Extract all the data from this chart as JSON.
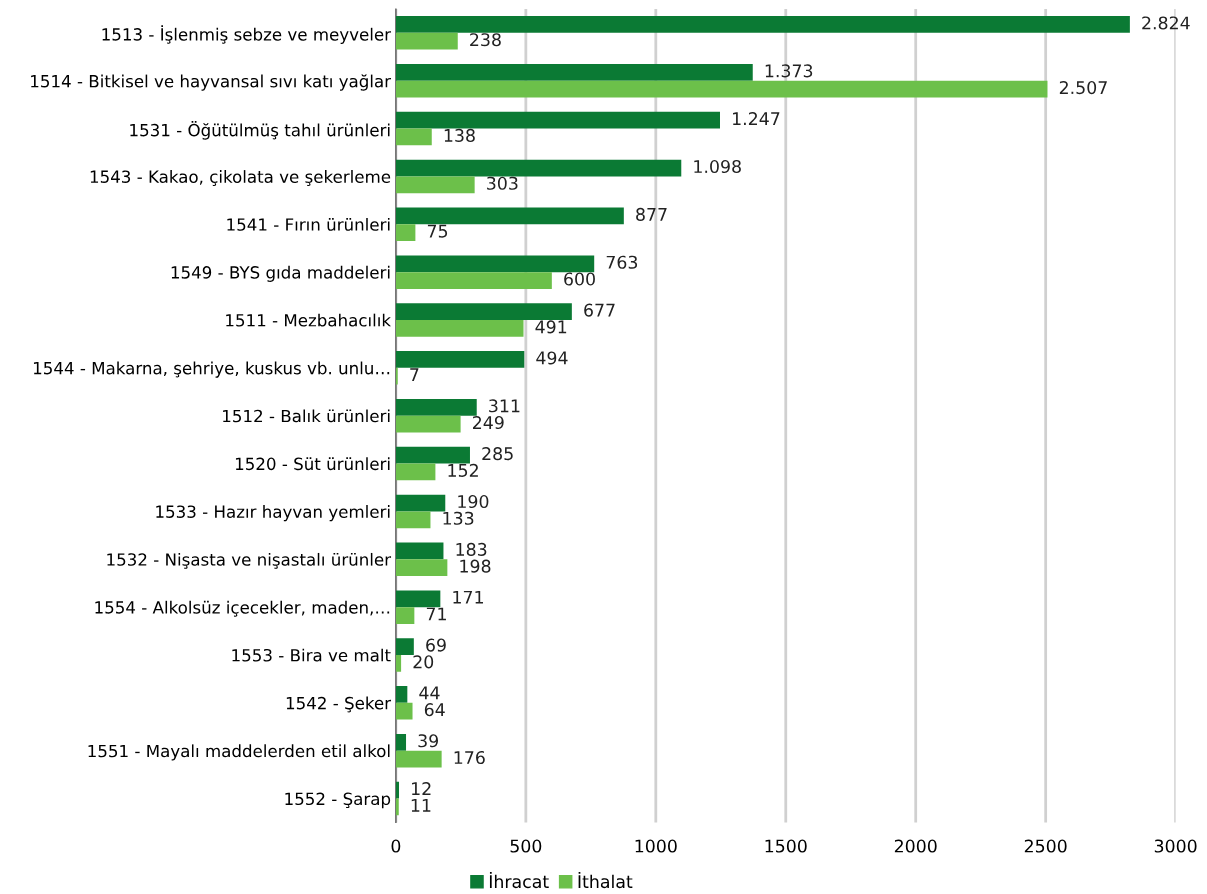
{
  "chart_data": {
    "type": "bar",
    "orientation": "horizontal",
    "categories": [
      "1513 - İşlenmiş sebze ve meyveler",
      "1514 - Bitkisel ve hayvansal sıvı katı yağlar",
      "1531 - Öğütülmüş tahıl ürünleri",
      "1543 - Kakao, çikolata ve şekerleme",
      "1541 - Fırın ürünleri",
      "1549 - BYS gıda maddeleri",
      "1511 - Mezbahacılık",
      "1544 - Makarna, şehriye, kuskus vb. unlu…",
      "1512 - Balık ürünleri",
      "1520 - Süt ürünleri",
      "1533 - Hazır hayvan yemleri",
      "1532 - Nişasta ve nişastalı ürünler",
      "1554 - Alkolsüz içecekler, maden,…",
      "1553 - Bira ve malt",
      "1542 - Şeker",
      "1551 - Mayalı maddelerden etil alkol",
      "1552 - Şarap"
    ],
    "series": [
      {
        "name": "İhracat",
        "color": "#0b7a34",
        "values": [
          2824,
          1373,
          1247,
          1098,
          877,
          763,
          677,
          494,
          311,
          285,
          190,
          183,
          171,
          69,
          44,
          39,
          12
        ],
        "value_labels": [
          "2.824",
          "1.373",
          "1.247",
          "1.098",
          "877",
          "763",
          "677",
          "494",
          "311",
          "285",
          "190",
          "183",
          "171",
          "69",
          "44",
          "39",
          "12"
        ]
      },
      {
        "name": "İthalat",
        "color": "#6cc04a",
        "values": [
          238,
          2507,
          138,
          303,
          75,
          600,
          491,
          7,
          249,
          152,
          133,
          198,
          71,
          20,
          64,
          176,
          11
        ],
        "value_labels": [
          "238",
          "2.507",
          "138",
          "303",
          "75",
          "600",
          "491",
          "7",
          "249",
          "152",
          "133",
          "198",
          "71",
          "20",
          "64",
          "176",
          "11"
        ]
      }
    ],
    "xlim": [
      0,
      3000
    ],
    "xticks": [
      0,
      500,
      1000,
      1500,
      2000,
      2500,
      3000
    ],
    "grid": "x",
    "legend": "bottom"
  }
}
